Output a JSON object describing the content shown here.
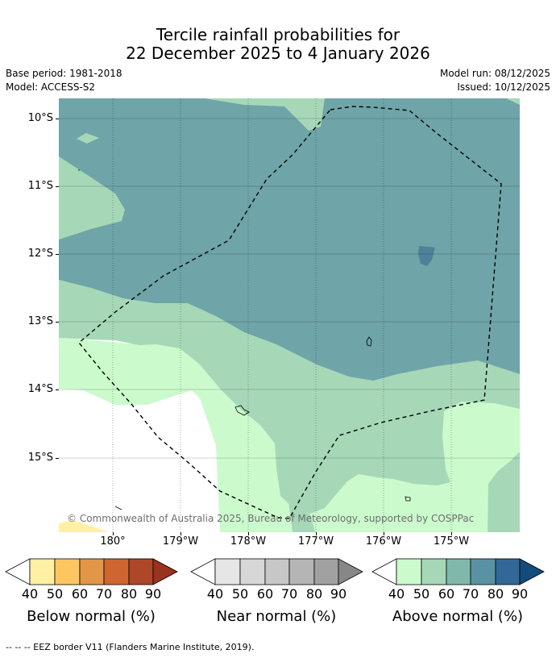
{
  "title_line1": "Tercile rainfall probabilities for",
  "title_line2": "22 December 2025 to 4 January 2026",
  "base_period": "Base period: 1981-2018",
  "model": "Model: ACCESS-S2",
  "model_run": "Model run: 08/12/2025",
  "issued": "Issued: 10/12/2025",
  "map": {
    "lat_labels": [
      "10°S",
      "11°S",
      "12°S",
      "13°S",
      "14°S",
      "15°S"
    ],
    "lon_labels": [
      "180°",
      "179°W",
      "178°W",
      "177°W",
      "176°W",
      "175°W"
    ],
    "copyright": "© Commonwealth of Australia 2025, Bureau of Meteorology, supported by COSPPac"
  },
  "legends": {
    "ticks": [
      "40",
      "50",
      "60",
      "70",
      "80",
      "90"
    ],
    "below": {
      "title": "Below normal (%)",
      "colors": [
        "#fff0a3",
        "#fdc660",
        "#e29646",
        "#cf6632",
        "#ae4727",
        "#99321e"
      ]
    },
    "near": {
      "title": "Near normal (%)",
      "colors": [
        "#e6e6e6",
        "#d7d7d7",
        "#c7c7c7",
        "#b5b5b5",
        "#a1a1a1",
        "#878787"
      ]
    },
    "above": {
      "title": "Above normal (%)",
      "colors": [
        "#cbfbcc",
        "#a6d8b8",
        "#80b8ac",
        "#5993a3",
        "#326898",
        "#134b7c"
      ]
    }
  },
  "footnote": "--  --  -- EEZ border V11 (Flanders Marine Institute, 2019)."
}
